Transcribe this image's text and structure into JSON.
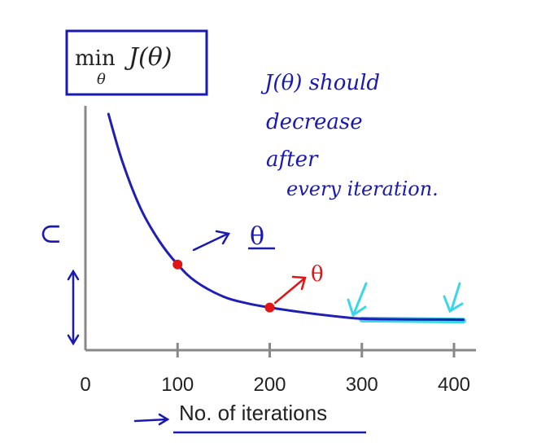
{
  "title_box": {
    "min": "min",
    "j_theta": "J(θ)",
    "subscript": "θ"
  },
  "note_lines": [
    "J(θ) should",
    "decrease",
    "after",
    "every iteration."
  ],
  "theta_labels": [
    "θ",
    "θ"
  ],
  "colors": {
    "axis": "#888888",
    "curve": "#1f1fb4",
    "ink": "#1a1ab0",
    "marker": "#e01515",
    "highlight": "#3ad7ea"
  },
  "chart_data": {
    "type": "line",
    "xlabel": "No. of iterations",
    "ylabel": "",
    "ylim": [
      0,
      1
    ],
    "xlim": [
      0,
      400
    ],
    "x_ticks": [
      0,
      100,
      200,
      300,
      400
    ],
    "x_tick_labels": [
      "0",
      "100",
      "200",
      "300",
      "400"
    ],
    "grid": false,
    "series": [
      {
        "x": [
          25,
          40,
          60,
          80,
          100,
          120,
          150,
          175,
          200,
          240,
          280,
          300,
          340,
          380,
          410
        ],
        "y": [
          1.0,
          0.78,
          0.56,
          0.41,
          0.3,
          0.22,
          0.15,
          0.12,
          0.1,
          0.075,
          0.055,
          0.048,
          0.045,
          0.044,
          0.043
        ]
      }
    ],
    "points": [
      {
        "x": 100,
        "y": 0.3
      },
      {
        "x": 200,
        "y": 0.1
      }
    ],
    "highlight_range": [
      300,
      410
    ]
  }
}
